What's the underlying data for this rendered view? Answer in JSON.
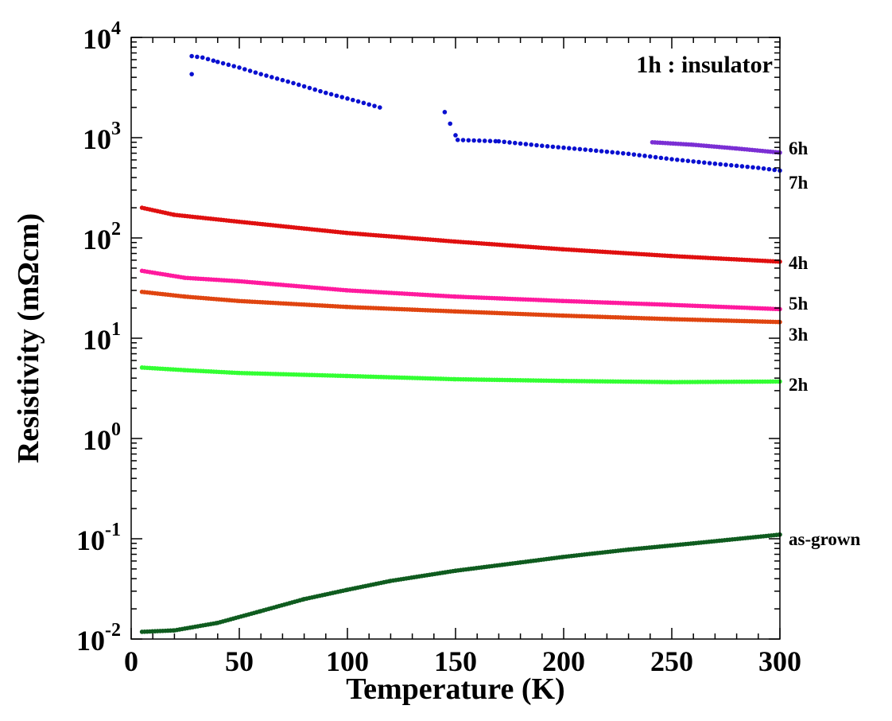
{
  "chart_data": {
    "type": "scatter",
    "title": "",
    "xlabel": "Temperature (K)",
    "ylabel": "Resistivity (mΩcm)",
    "xlim": [
      0,
      300
    ],
    "ylim_log10": [
      -2,
      4
    ],
    "yscale": "log",
    "x_ticks": [
      "0",
      "50",
      "100",
      "150",
      "200",
      "250",
      "300"
    ],
    "y_ticks": [
      {
        "base": "10",
        "exp": "4"
      },
      {
        "base": "10",
        "exp": "3"
      },
      {
        "base": "10",
        "exp": "2"
      },
      {
        "base": "10",
        "exp": "1"
      },
      {
        "base": "10",
        "exp": "0"
      },
      {
        "base": "10",
        "exp": "-1"
      },
      {
        "base": "10",
        "exp": "-2"
      }
    ],
    "annotation": "1h : insulator",
    "grid": false,
    "series": [
      {
        "name": "6h",
        "color": "#7b2fd4",
        "points": [
          [
            241,
            900
          ],
          [
            260,
            850
          ],
          [
            280,
            780
          ],
          [
            300,
            710
          ]
        ]
      },
      {
        "name": "7h",
        "color": "#0a10d0",
        "points": [
          [
            28,
            4300
          ],
          [
            28,
            6500
          ],
          [
            33,
            6300
          ],
          [
            40,
            5700
          ],
          [
            50,
            5000
          ],
          [
            60,
            4300
          ],
          [
            75,
            3500
          ],
          [
            90,
            2800
          ],
          [
            105,
            2300
          ],
          [
            115,
            2000
          ],
          [
            145,
            1800
          ],
          [
            151,
            950
          ],
          [
            170,
            920
          ],
          [
            190,
            830
          ],
          [
            210,
            760
          ],
          [
            230,
            690
          ],
          [
            250,
            610
          ],
          [
            270,
            550
          ],
          [
            290,
            500
          ],
          [
            300,
            470
          ]
        ]
      },
      {
        "name": "4h",
        "color": "#e01010",
        "points": [
          [
            5,
            200
          ],
          [
            20,
            170
          ],
          [
            50,
            145
          ],
          [
            100,
            112
          ],
          [
            150,
            92
          ],
          [
            200,
            77
          ],
          [
            250,
            66
          ],
          [
            300,
            58
          ]
        ]
      },
      {
        "name": "5h",
        "color": "#ff1a9e",
        "points": [
          [
            5,
            47
          ],
          [
            25,
            40
          ],
          [
            50,
            37
          ],
          [
            100,
            30
          ],
          [
            150,
            26
          ],
          [
            200,
            23.5
          ],
          [
            250,
            21.5
          ],
          [
            300,
            19.5
          ]
        ]
      },
      {
        "name": "3h",
        "color": "#e04510",
        "points": [
          [
            5,
            29
          ],
          [
            25,
            26
          ],
          [
            50,
            23.5
          ],
          [
            100,
            20.5
          ],
          [
            150,
            18.5
          ],
          [
            200,
            16.8
          ],
          [
            250,
            15.5
          ],
          [
            300,
            14.5
          ]
        ]
      },
      {
        "name": "2h",
        "color": "#33ff33",
        "points": [
          [
            5,
            5.1
          ],
          [
            25,
            4.8
          ],
          [
            50,
            4.5
          ],
          [
            100,
            4.2
          ],
          [
            150,
            3.9
          ],
          [
            200,
            3.75
          ],
          [
            250,
            3.65
          ],
          [
            300,
            3.7
          ]
        ]
      },
      {
        "name": "as-grown",
        "color": "#0f5c1f",
        "points": [
          [
            5,
            0.0118
          ],
          [
            20,
            0.0122
          ],
          [
            40,
            0.0145
          ],
          [
            60,
            0.019
          ],
          [
            80,
            0.025
          ],
          [
            100,
            0.031
          ],
          [
            120,
            0.038
          ],
          [
            150,
            0.048
          ],
          [
            180,
            0.058
          ],
          [
            200,
            0.066
          ],
          [
            230,
            0.078
          ],
          [
            260,
            0.09
          ],
          [
            300,
            0.11
          ]
        ]
      }
    ]
  }
}
